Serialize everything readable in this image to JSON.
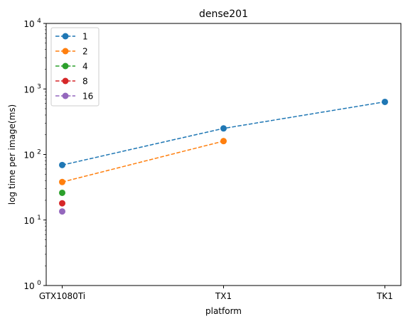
{
  "chart_data": {
    "type": "line",
    "title": "dense201",
    "xlabel": "platform",
    "ylabel": "log time per image(ms)",
    "yscale": "log",
    "ylim": [
      1,
      10000
    ],
    "y_ticks": [
      {
        "value": 1,
        "base": "10",
        "exp": "0"
      },
      {
        "value": 10,
        "base": "10",
        "exp": "1"
      },
      {
        "value": 100,
        "base": "10",
        "exp": "2"
      },
      {
        "value": 1000,
        "base": "10",
        "exp": "3"
      },
      {
        "value": 10000,
        "base": "10",
        "exp": "4"
      }
    ],
    "categories": [
      "GTX1080Ti",
      "TX1",
      "TK1"
    ],
    "grid": false,
    "legend_position": "top-left",
    "series": [
      {
        "name": "1",
        "color": "#1f77b4",
        "values": [
          69,
          250,
          635
        ]
      },
      {
        "name": "2",
        "color": "#ff7f0e",
        "values": [
          38,
          160,
          null
        ]
      },
      {
        "name": "4",
        "color": "#2ca02c",
        "values": [
          26,
          null,
          null
        ]
      },
      {
        "name": "8",
        "color": "#d62728",
        "values": [
          18,
          null,
          null
        ]
      },
      {
        "name": "16",
        "color": "#9467bd",
        "values": [
          13.5,
          null,
          null
        ]
      }
    ]
  }
}
